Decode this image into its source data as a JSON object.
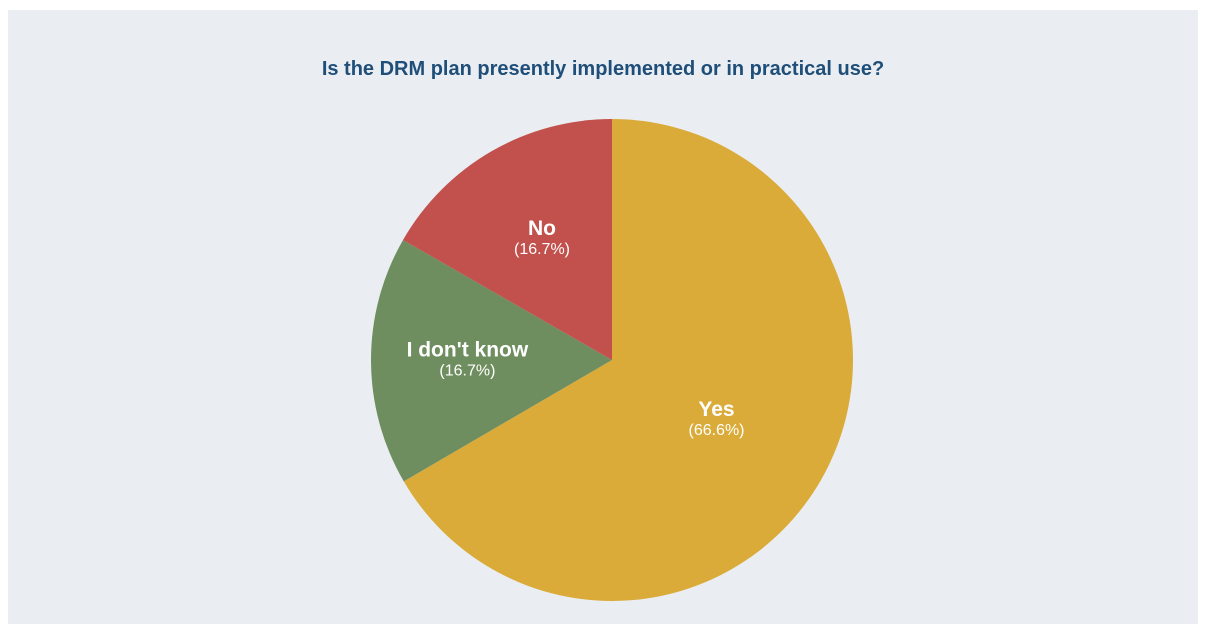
{
  "chart_data": {
    "type": "pie",
    "title": "Is the DRM plan presently implemented or in practical use?",
    "slices": [
      {
        "label": "Yes",
        "value": 66.6,
        "value_label": "(66.6%)",
        "color": "#dbab3a"
      },
      {
        "label": "I don't know",
        "value": 16.7,
        "value_label": "(16.7%)",
        "color": "#6f8e5f"
      },
      {
        "label": "No",
        "value": 16.7,
        "value_label": "(16.7%)",
        "color": "#c2504c"
      }
    ],
    "start": "12 o'clock",
    "direction": "clockwise",
    "background": "#eaeef3",
    "title_color": "#1f4e79",
    "legend": "none"
  }
}
